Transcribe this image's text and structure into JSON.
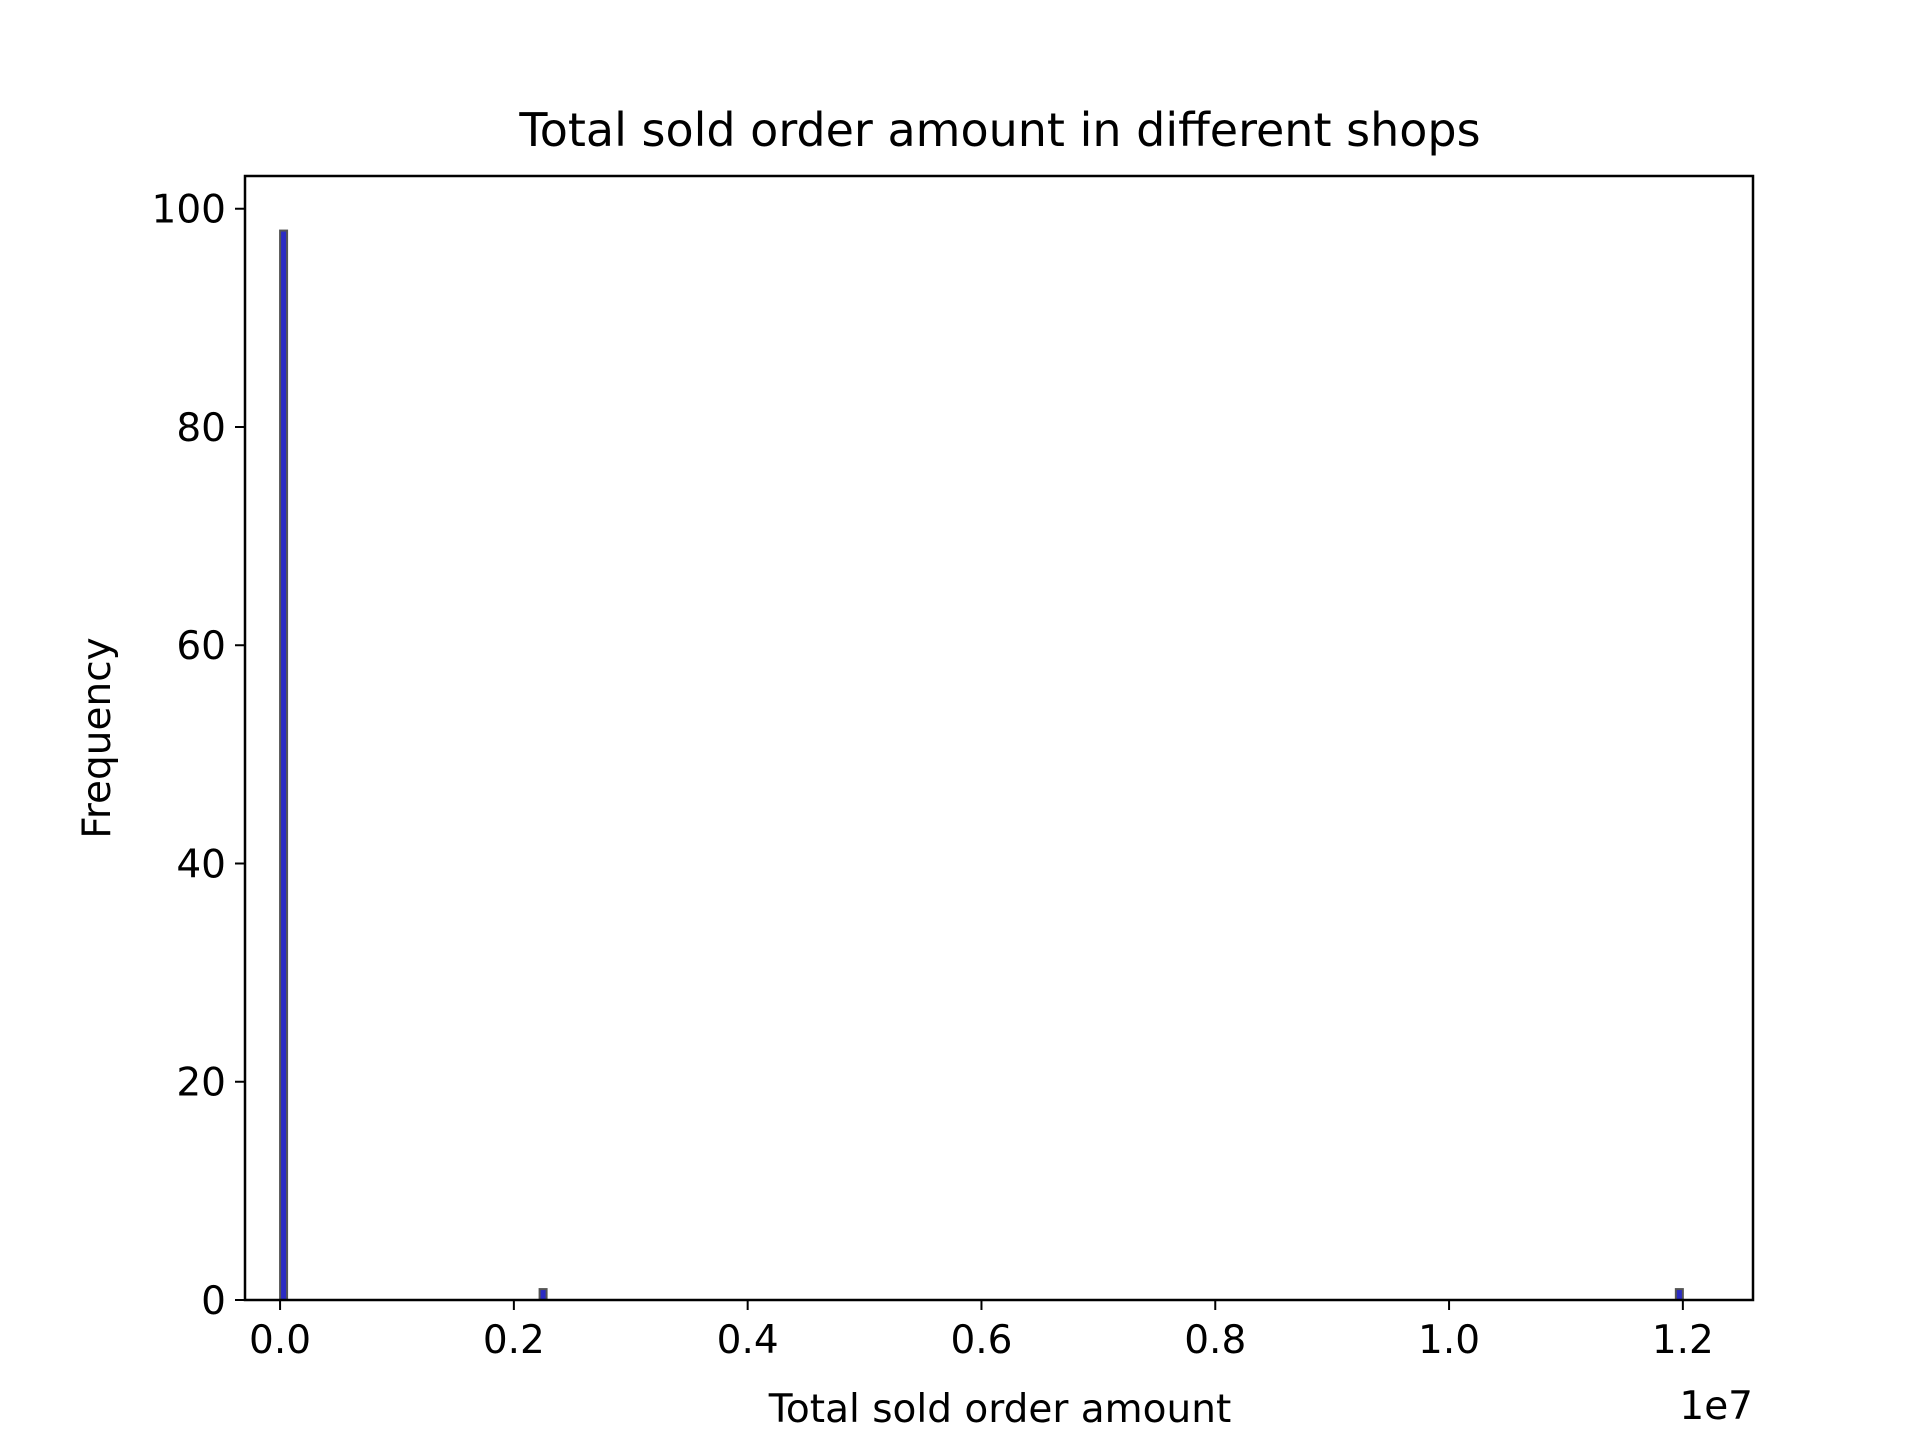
{
  "chart_data": {
    "type": "bar",
    "title": "Total sold order amount in different shops",
    "xlabel": "Total sold order amount",
    "ylabel": "Frequency",
    "x_offset_text": "1e7",
    "xlim": [
      -0.03,
      1.26
    ],
    "ylim": [
      0,
      103
    ],
    "x_ticks": [
      0.0,
      0.2,
      0.4,
      0.6,
      0.8,
      1.0,
      1.2
    ],
    "x_tick_labels": [
      "0.0",
      "0.2",
      "0.4",
      "0.6",
      "0.8",
      "1.0",
      "1.2"
    ],
    "y_ticks": [
      0,
      20,
      40,
      60,
      80,
      100
    ],
    "y_tick_labels": [
      "0",
      "20",
      "40",
      "60",
      "80",
      "100"
    ],
    "grid": false,
    "legend": "none",
    "bar_color": "#2b2bc4",
    "edge_color": "#555555",
    "bins": [
      {
        "x0": 0.0,
        "x1": 0.006,
        "count": 98
      },
      {
        "x0": 0.222,
        "x1": 0.228,
        "count": 1
      },
      {
        "x0": 1.194,
        "x1": 1.2,
        "count": 1
      }
    ]
  }
}
